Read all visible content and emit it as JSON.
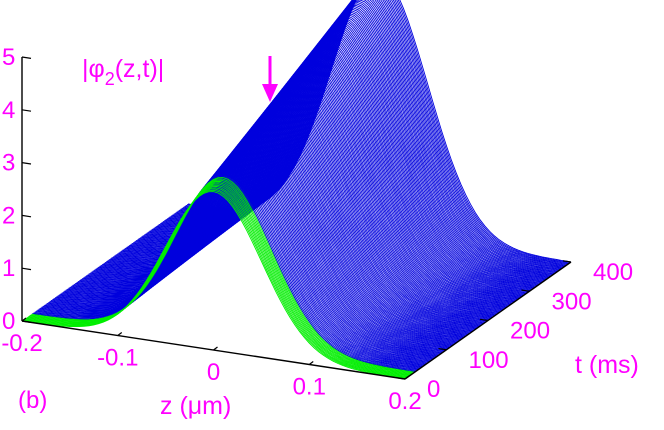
{
  "chart_data": {
    "type": "surface",
    "panel_label": "(b)",
    "zlabel": "|φ2(z,t)|",
    "zlabel_main": "|φ",
    "zlabel_sub": "2",
    "zlabel_tail": "(z,t)|",
    "xlabel": "z (μm)",
    "ylabel": "t (ms)",
    "xlim": [
      -0.2,
      0.2
    ],
    "ylim": [
      0,
      400
    ],
    "zlim": [
      0,
      5
    ],
    "x_ticks": [
      "-0.2",
      "-0.1",
      "0",
      "0.1",
      "0.2"
    ],
    "x_tick_values": [
      -0.2,
      -0.1,
      0,
      0.1,
      0.2
    ],
    "y_ticks": [
      "0",
      "100",
      "200",
      "300",
      "400"
    ],
    "y_tick_values": [
      0,
      100,
      200,
      300,
      400
    ],
    "z_ticks": [
      "0",
      "1",
      "2",
      "3",
      "4",
      "5"
    ],
    "z_tick_values": [
      0,
      1,
      2,
      3,
      4,
      5
    ],
    "annotation": {
      "type": "arrow",
      "t": 100,
      "z_value": 5.0
    },
    "series": [
      {
        "color": "#00ee00",
        "t_range": [
          0,
          25
        ],
        "peak_start": 3.0,
        "peak_end": 3.15,
        "width": 0.05
      },
      {
        "color": "#0000dd",
        "t_range": [
          25,
          400
        ],
        "peak_start": 3.15,
        "peak_end": 4.9,
        "width": 0.05
      }
    ],
    "colors": {
      "axis": "#000000",
      "labels": "#ff00ff"
    }
  }
}
